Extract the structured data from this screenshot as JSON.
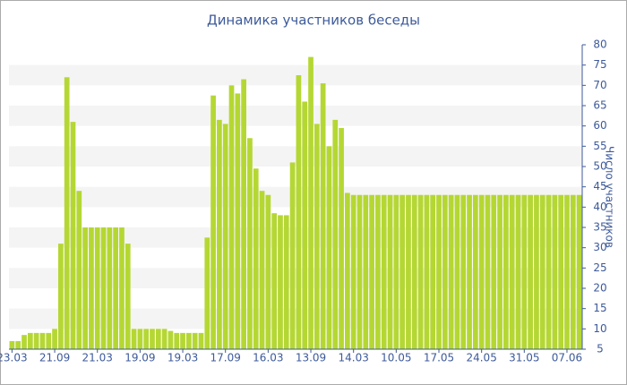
{
  "chart_data": {
    "type": "bar",
    "title": "Динамика участников беседы",
    "y_label": "Число участников",
    "categories": [
      "23.03",
      null,
      null,
      null,
      null,
      null,
      null,
      "21.09",
      null,
      null,
      null,
      null,
      null,
      null,
      "21.03",
      null,
      null,
      null,
      null,
      null,
      null,
      "19.09",
      null,
      null,
      null,
      null,
      null,
      null,
      "19.03",
      null,
      null,
      null,
      null,
      null,
      null,
      "17.09",
      null,
      null,
      null,
      null,
      null,
      null,
      "16.03",
      null,
      null,
      null,
      null,
      null,
      null,
      "13.09",
      null,
      null,
      null,
      null,
      null,
      null,
      "14.03",
      null,
      null,
      null,
      null,
      null,
      null,
      "10.05",
      null,
      null,
      null,
      null,
      null,
      null,
      "17.05",
      null,
      null,
      null,
      null,
      null,
      null,
      "24.05",
      null,
      null,
      null,
      null,
      null,
      null,
      "31.05",
      null,
      null,
      null,
      null,
      null,
      null,
      "07.06",
      null,
      null
    ],
    "values": [
      7,
      7,
      8.5,
      9,
      9,
      9,
      9,
      10,
      31,
      72,
      61,
      44,
      35,
      35,
      35,
      35,
      35,
      35,
      35,
      31,
      10,
      10,
      10,
      10,
      10,
      10,
      9.5,
      9,
      9,
      9,
      9,
      9,
      32.5,
      67.5,
      61.5,
      60.5,
      70,
      68,
      71.5,
      57,
      49.5,
      44,
      43,
      38.5,
      38,
      38,
      51,
      72.5,
      66,
      77,
      60.5,
      70.5,
      55,
      61.5,
      59.5,
      43.5,
      43,
      43,
      43,
      43,
      43,
      43,
      43,
      43,
      43,
      43,
      43,
      43,
      43,
      43,
      43,
      43,
      43,
      43,
      43,
      43,
      43,
      43,
      43,
      43,
      43,
      43,
      43,
      43,
      43,
      43,
      43,
      43,
      43,
      43,
      43,
      43,
      43,
      43
    ],
    "color": "#b5d733",
    "ylim": [
      5,
      80
    ],
    "yticks": [
      5,
      10,
      15,
      20,
      25,
      30,
      35,
      40,
      45,
      50,
      55,
      60,
      65,
      70,
      75,
      80
    ],
    "grid": true
  }
}
